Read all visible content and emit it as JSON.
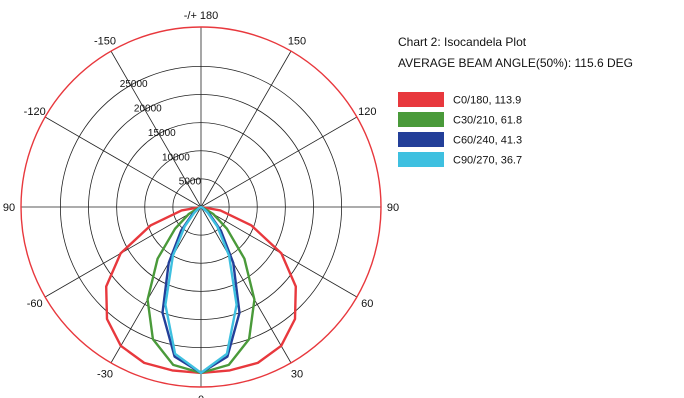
{
  "chart_data": {
    "type": "polar",
    "title": "Chart 2: Isocandela Plot",
    "subtitle": "AVERAGE BEAM ANGLE(50%): 115.6 DEG",
    "angle_labels": [
      {
        "deg": 180,
        "text": "-/+ 180"
      },
      {
        "deg": 150,
        "text": "150"
      },
      {
        "deg": 120,
        "text": "120"
      },
      {
        "deg": 90,
        "text": "90"
      },
      {
        "deg": 60,
        "text": "60"
      },
      {
        "deg": 30,
        "text": "30"
      },
      {
        "deg": 0,
        "text": "0"
      },
      {
        "deg": -30,
        "text": "-30"
      },
      {
        "deg": -60,
        "text": "-60"
      },
      {
        "deg": -90,
        "text": "90"
      },
      {
        "deg": -120,
        "text": "-120"
      },
      {
        "deg": -150,
        "text": "-150"
      }
    ],
    "radial_ticks": [
      5000,
      10000,
      15000,
      20000,
      25000
    ],
    "rmax": 32000,
    "grid": true,
    "legend_position": "right",
    "series": [
      {
        "name": "C0/180",
        "beam_angle": "113.9",
        "color": "#e8383d",
        "angles": [
          -90,
          -80,
          -70,
          -60,
          -50,
          -40,
          -30,
          -20,
          -10,
          0,
          10,
          20,
          30,
          40,
          50,
          60,
          70,
          80,
          90
        ],
        "values": [
          0,
          3500,
          9500,
          16500,
          22000,
          26000,
          28500,
          29500,
          29500,
          29500,
          29500,
          29500,
          28500,
          26000,
          22000,
          16500,
          9500,
          3500,
          0
        ]
      },
      {
        "name": "C30/210",
        "beam_angle": "61.8",
        "color": "#4a9a3a",
        "angles": [
          -90,
          -80,
          -70,
          -60,
          -50,
          -40,
          -30,
          -20,
          -10,
          0,
          10,
          20,
          30,
          40,
          50,
          60,
          70,
          80,
          90
        ],
        "values": [
          0,
          0,
          500,
          2500,
          6000,
          12000,
          19000,
          25000,
          28500,
          29500,
          28500,
          25000,
          19000,
          12000,
          6000,
          2500,
          500,
          0,
          0
        ]
      },
      {
        "name": "C60/240",
        "beam_angle": "41.3",
        "color": "#233f99",
        "angles": [
          -90,
          -80,
          -70,
          -60,
          -50,
          -40,
          -30,
          -20,
          -10,
          0,
          10,
          20,
          30,
          40,
          50,
          60,
          70,
          80,
          90
        ],
        "values": [
          0,
          0,
          0,
          500,
          2000,
          5500,
          11500,
          20000,
          27000,
          29500,
          27000,
          20000,
          11500,
          5500,
          2000,
          500,
          0,
          0,
          0
        ]
      },
      {
        "name": "C90/270",
        "beam_angle": "36.7",
        "color": "#3ec0e0",
        "angles": [
          -90,
          -80,
          -70,
          -60,
          -50,
          -40,
          -30,
          -20,
          -10,
          0,
          10,
          20,
          30,
          40,
          50,
          60,
          70,
          80,
          90
        ],
        "values": [
          0,
          0,
          0,
          300,
          1500,
          4500,
          10000,
          18500,
          26500,
          29500,
          26500,
          18500,
          10000,
          4500,
          1500,
          300,
          0,
          0,
          0
        ]
      }
    ]
  }
}
